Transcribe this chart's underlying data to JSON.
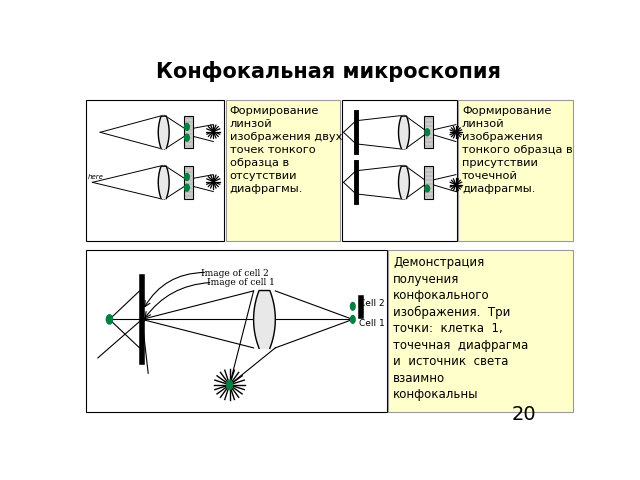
{
  "title": "Конфокальная микроскопия",
  "title_fontsize": 15,
  "title_fontweight": "bold",
  "bg_color": "#ffffff",
  "slide_number": "20",
  "text_box1": "Формирование\nлинзой\nизображения двух\nточек тонкого\nобразца в\nотсутствии\nдиафрагмы.",
  "text_box2": "Формирование\nлинзой\nизображения\nтонкого образца в\nприсутствии\nточечной\nдиафрагмы.",
  "text_box3": "Демонстрация\nполучения\nконфокального\nизображения.  Три\nточки:  клетка  1,\nточечная  диафрагма\nи  источник  света\nвзаимно\nконфокальны",
  "box_bg": "#ffffcc",
  "box_edge": "#999999",
  "green_color": "#008040",
  "label_font": 7.5
}
